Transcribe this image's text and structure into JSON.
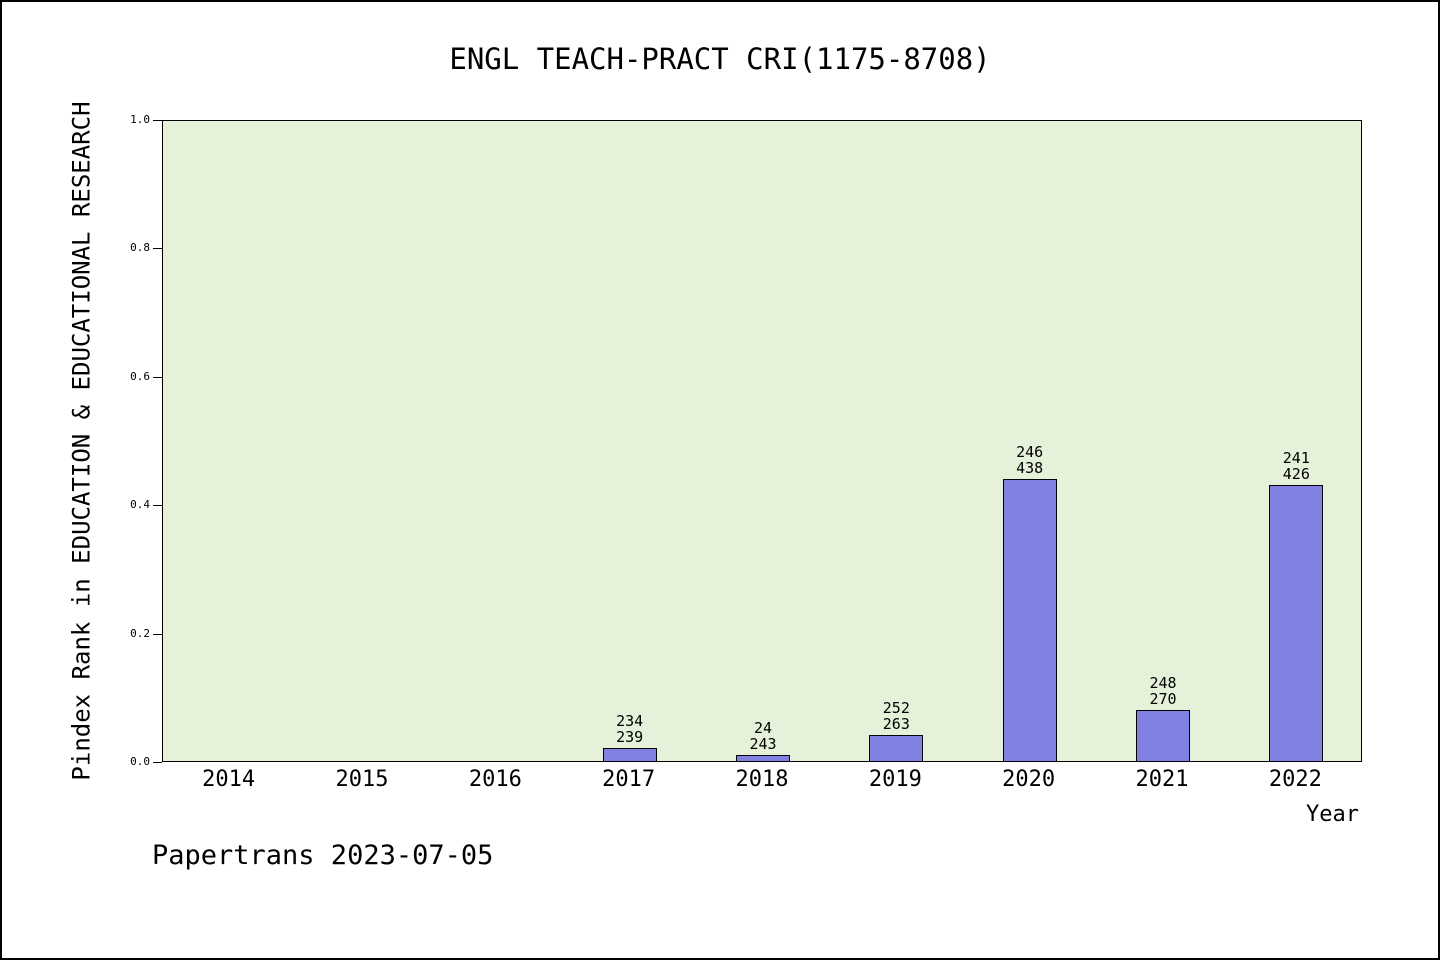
{
  "title": "ENGL TEACH-PRACT CRI(1175-8708)",
  "footer": "Papertrans 2023-07-05",
  "colors": {
    "plot_bg": "#e5f2d9",
    "bar_fill": "#8181e1",
    "bar_border": "#000000"
  },
  "chart_data": {
    "type": "bar",
    "title": "ENGL TEACH-PRACT CRI(1175-8708)",
    "xlabel": "Year",
    "ylabel": "Pindex Rank in EDUCATION & EDUCATIONAL RESEARCH",
    "categories": [
      "2014",
      "2015",
      "2016",
      "2017",
      "2018",
      "2019",
      "2020",
      "2021",
      "2022"
    ],
    "values": [
      0,
      0,
      0,
      0.02,
      0.01,
      0.04,
      0.44,
      0.08,
      0.43
    ],
    "bar_labels": [
      [],
      [],
      [],
      [
        "234",
        "239"
      ],
      [
        "24",
        "243"
      ],
      [
        "252",
        "263"
      ],
      [
        "246",
        "438"
      ],
      [
        "248",
        "270"
      ],
      [
        "241",
        "426"
      ]
    ],
    "ylim": [
      0,
      1
    ],
    "yticks": [
      0,
      0.2,
      0.4,
      0.6,
      0.8,
      1.0
    ],
    "ytick_labels": [
      "0.0",
      "0.2",
      "0.4",
      "0.6",
      "0.8",
      "1.0"
    ],
    "grid": false,
    "legend_position": "none",
    "annotation": "Papertrans 2023-07-05"
  }
}
